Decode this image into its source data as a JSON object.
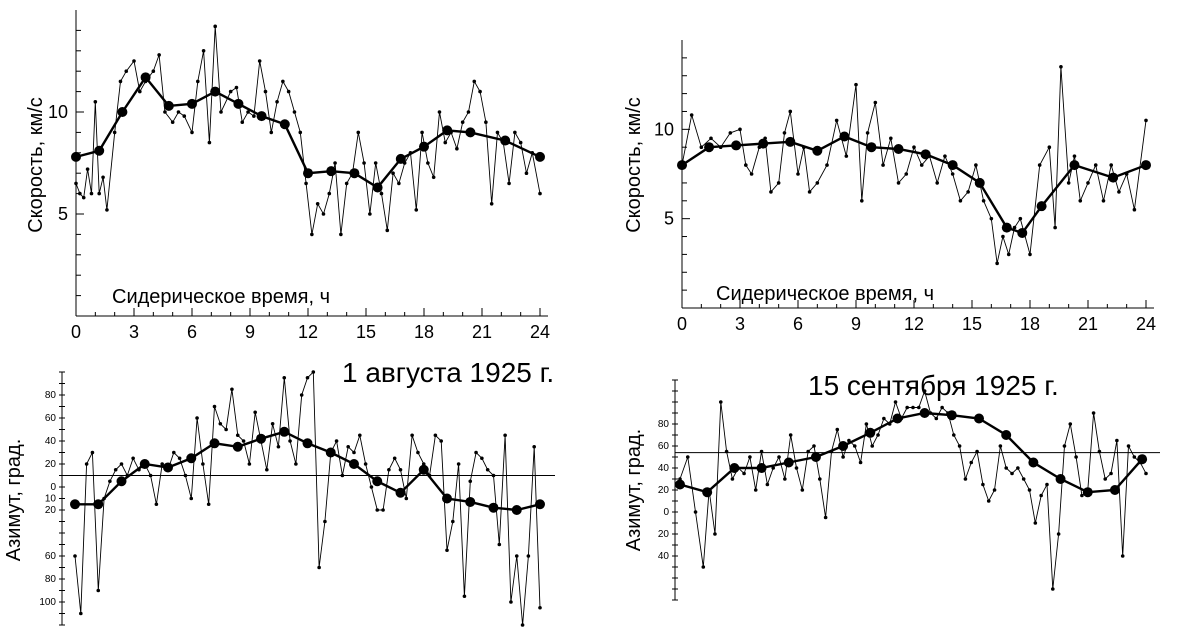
{
  "chart_data": [
    {
      "id": "speed-aug",
      "type": "line",
      "ylabel": "Скорость, км/с",
      "xlabel": "Сидерическое время, ч",
      "xlim": [
        0,
        24
      ],
      "ylim": [
        0,
        15
      ],
      "xticks": [
        "0",
        "3",
        "6",
        "9",
        "12",
        "15",
        "18",
        "21",
        "24"
      ],
      "yticks": [
        {
          "value": 5,
          "label": "5"
        },
        {
          "value": 10,
          "label": "10"
        }
      ],
      "series": [
        {
          "role": "raw",
          "x": [
            0,
            0.2,
            0.4,
            0.6,
            0.8,
            1.0,
            1.2,
            1.4,
            1.6,
            2.0,
            2.3,
            2.6,
            3.0,
            3.3,
            3.6,
            4.0,
            4.3,
            4.6,
            5.0,
            5.3,
            5.6,
            6.0,
            6.3,
            6.6,
            6.9,
            7.2,
            7.5,
            8.0,
            8.3,
            8.6,
            8.9,
            9.2,
            9.5,
            9.8,
            10.1,
            10.4,
            10.7,
            11.0,
            11.3,
            11.6,
            11.9,
            12.2,
            12.5,
            12.8,
            13.1,
            13.4,
            13.7,
            14.0,
            14.3,
            14.6,
            14.9,
            15.2,
            15.5,
            15.8,
            16.1,
            16.4,
            16.7,
            17.0,
            17.3,
            17.6,
            17.9,
            18.2,
            18.5,
            18.8,
            19.1,
            19.4,
            19.7,
            20.0,
            20.3,
            20.6,
            20.9,
            21.2,
            21.5,
            21.8,
            22.1,
            22.4,
            22.7,
            23.0,
            23.3,
            23.6,
            24.0
          ],
          "y": [
            6.5,
            6.0,
            5.8,
            7.2,
            6.0,
            10.5,
            6.0,
            6.8,
            5.2,
            9.0,
            11.5,
            12.0,
            12.5,
            11.0,
            11.5,
            12.0,
            12.8,
            10.0,
            9.5,
            10.0,
            9.8,
            9.0,
            11.5,
            13.0,
            8.5,
            14.2,
            10.0,
            11.0,
            11.2,
            9.5,
            10.0,
            9.8,
            12.5,
            11.0,
            9.0,
            10.5,
            11.5,
            11.0,
            10.0,
            9.0,
            6.5,
            4.0,
            5.5,
            5.0,
            6.0,
            7.5,
            4.0,
            6.5,
            7.0,
            9.0,
            7.5,
            5.0,
            7.5,
            6.0,
            4.2,
            7.0,
            6.5,
            7.5,
            8.0,
            5.2,
            9.0,
            7.5,
            6.8,
            10.0,
            8.5,
            9.0,
            8.2,
            9.5,
            10.0,
            11.5,
            11.0,
            9.5,
            5.5,
            9.0,
            8.5,
            6.5,
            9.0,
            8.5,
            7.0,
            8.0,
            6.0
          ]
        },
        {
          "role": "mean",
          "x": [
            0,
            1.2,
            2.4,
            3.6,
            4.8,
            6.0,
            7.2,
            8.4,
            9.6,
            10.8,
            12.0,
            13.2,
            14.4,
            15.6,
            16.8,
            18.0,
            19.2,
            20.4,
            22.2,
            24.0
          ],
          "y": [
            7.8,
            8.1,
            10.0,
            11.7,
            10.3,
            10.4,
            11.0,
            10.4,
            9.8,
            9.4,
            7.0,
            7.1,
            7.0,
            6.3,
            7.7,
            8.3,
            9.1,
            9.0,
            8.6,
            7.8
          ]
        }
      ]
    },
    {
      "id": "speed-sep",
      "type": "line",
      "ylabel": "Скорость, км/с",
      "xlabel": "Сидерическое время, ч",
      "xlim": [
        0,
        24
      ],
      "ylim": [
        0,
        15
      ],
      "xticks": [
        "0",
        "3",
        "6",
        "9",
        "12",
        "15",
        "18",
        "21",
        "24"
      ],
      "yticks": [
        {
          "value": 5,
          "label": "5"
        },
        {
          "value": 10,
          "label": "10"
        }
      ],
      "series": [
        {
          "role": "raw",
          "x": [
            0,
            0.5,
            1.0,
            1.5,
            2.0,
            2.5,
            3.0,
            3.3,
            3.6,
            4.0,
            4.3,
            4.6,
            5.0,
            5.3,
            5.6,
            6.0,
            6.3,
            6.6,
            7.0,
            7.5,
            8.0,
            8.5,
            9.0,
            9.3,
            9.6,
            10.0,
            10.4,
            10.8,
            11.2,
            11.6,
            12.0,
            12.4,
            12.8,
            13.2,
            13.6,
            14.0,
            14.4,
            14.8,
            15.2,
            15.6,
            16.0,
            16.3,
            16.6,
            16.9,
            17.2,
            17.5,
            18.0,
            18.5,
            19.0,
            19.3,
            19.6,
            20.0,
            20.3,
            20.6,
            21.0,
            21.4,
            21.8,
            22.2,
            22.6,
            23.0,
            23.4,
            24.0
          ],
          "y": [
            8.0,
            10.8,
            9.0,
            9.5,
            9.0,
            9.8,
            10.0,
            8.0,
            7.5,
            9.0,
            9.5,
            6.5,
            7.0,
            9.8,
            11.0,
            7.5,
            9.0,
            6.5,
            7.0,
            8.0,
            10.5,
            8.5,
            12.5,
            6.0,
            9.8,
            11.5,
            8.0,
            9.5,
            7.0,
            7.5,
            9.0,
            8.0,
            8.5,
            7.0,
            8.5,
            7.5,
            6.0,
            6.5,
            8.0,
            6.0,
            5.0,
            2.5,
            4.0,
            3.0,
            4.5,
            5.0,
            3.0,
            8.0,
            9.0,
            4.5,
            13.5,
            7.0,
            8.5,
            6.0,
            7.0,
            8.0,
            6.0,
            8.0,
            6.5,
            7.5,
            5.5,
            10.5
          ]
        },
        {
          "role": "mean",
          "x": [
            0,
            1.4,
            2.8,
            4.2,
            5.6,
            7.0,
            8.4,
            9.8,
            11.2,
            12.6,
            14.0,
            15.4,
            16.8,
            17.6,
            18.6,
            20.3,
            22.3,
            24.0
          ],
          "y": [
            8.0,
            9.0,
            9.1,
            9.2,
            9.3,
            8.8,
            9.6,
            9.0,
            8.9,
            8.6,
            8.0,
            7.0,
            4.5,
            4.2,
            5.7,
            8.0,
            7.3,
            8.0
          ]
        }
      ]
    },
    {
      "id": "azimuth-aug",
      "type": "line",
      "ylabel": "Азимут, град.",
      "xlim": [
        0,
        24
      ],
      "ylim": [
        -120,
        100
      ],
      "yticks": [
        {
          "value": 80,
          "label": "80"
        },
        {
          "value": 60,
          "label": "60"
        },
        {
          "value": 40,
          "label": "40"
        },
        {
          "value": 20,
          "label": "20"
        },
        {
          "value": 0,
          "label": "0"
        },
        {
          "value": -10,
          "label": "10"
        },
        {
          "value": -20,
          "label": "20"
        },
        {
          "value": -60,
          "label": "60"
        },
        {
          "value": -80,
          "label": "80"
        },
        {
          "value": -100,
          "label": "100"
        }
      ],
      "reference_line": 10,
      "series": [
        {
          "role": "raw",
          "x": [
            0,
            0.3,
            0.6,
            0.9,
            1.2,
            1.5,
            1.8,
            2.1,
            2.4,
            2.7,
            3.0,
            3.3,
            3.6,
            3.9,
            4.2,
            4.5,
            4.8,
            5.1,
            5.4,
            5.7,
            6.0,
            6.3,
            6.6,
            6.9,
            7.2,
            7.5,
            7.8,
            8.1,
            8.4,
            8.7,
            9.0,
            9.3,
            9.6,
            9.9,
            10.2,
            10.5,
            10.8,
            11.1,
            11.4,
            11.7,
            12.0,
            12.3,
            12.6,
            12.9,
            13.2,
            13.5,
            13.8,
            14.1,
            14.4,
            14.7,
            15.0,
            15.3,
            15.6,
            15.9,
            16.2,
            16.5,
            16.8,
            17.1,
            17.4,
            17.7,
            18.0,
            18.3,
            18.6,
            18.9,
            19.2,
            19.5,
            19.8,
            20.1,
            20.4,
            20.7,
            21.0,
            21.3,
            21.6,
            21.9,
            22.2,
            22.5,
            22.8,
            23.1,
            23.4,
            23.7,
            24.0
          ],
          "y": [
            -60,
            -110,
            20,
            30,
            -90,
            -10,
            5,
            15,
            20,
            10,
            25,
            15,
            20,
            10,
            -15,
            20,
            15,
            30,
            25,
            10,
            -10,
            60,
            20,
            -15,
            70,
            55,
            50,
            85,
            45,
            40,
            20,
            65,
            40,
            15,
            55,
            35,
            95,
            40,
            20,
            80,
            95,
            100,
            -70,
            -30,
            30,
            40,
            10,
            35,
            30,
            45,
            20,
            0,
            -20,
            -20,
            15,
            25,
            15,
            -10,
            45,
            30,
            20,
            10,
            45,
            40,
            -55,
            -30,
            20,
            -95,
            5,
            30,
            25,
            15,
            10,
            -50,
            45,
            -100,
            -60,
            -120,
            -60,
            35,
            -105
          ]
        },
        {
          "role": "mean",
          "x": [
            0,
            1.2,
            2.4,
            3.6,
            4.8,
            6.0,
            7.2,
            8.4,
            9.6,
            10.8,
            12.0,
            13.2,
            14.4,
            15.6,
            16.8,
            18.0,
            19.2,
            20.4,
            21.6,
            22.8,
            24.0
          ],
          "y": [
            -15,
            -15,
            5,
            20,
            17,
            25,
            38,
            35,
            42,
            48,
            38,
            30,
            20,
            5,
            -5,
            15,
            -10,
            -13,
            -18,
            -20,
            -15
          ]
        }
      ]
    },
    {
      "id": "azimuth-sep",
      "type": "line",
      "ylabel": "Азимут, град.",
      "xlim": [
        0,
        24
      ],
      "ylim": [
        -80,
        120
      ],
      "yticks": [
        {
          "value": 80,
          "label": "80"
        },
        {
          "value": 60,
          "label": "60"
        },
        {
          "value": 40,
          "label": "40"
        },
        {
          "value": 20,
          "label": "20"
        },
        {
          "value": 0,
          "label": "0"
        },
        {
          "value": -20,
          "label": "20"
        },
        {
          "value": -40,
          "label": "40"
        }
      ],
      "reference_line": 54,
      "series": [
        {
          "role": "raw",
          "x": [
            0,
            0.4,
            0.8,
            1.2,
            1.5,
            1.8,
            2.1,
            2.4,
            2.7,
            3.0,
            3.3,
            3.6,
            3.9,
            4.2,
            4.5,
            4.8,
            5.1,
            5.4,
            5.7,
            6.0,
            6.3,
            6.6,
            6.9,
            7.2,
            7.5,
            7.8,
            8.1,
            8.4,
            8.7,
            9.0,
            9.3,
            9.6,
            9.9,
            10.2,
            10.5,
            10.8,
            11.1,
            11.4,
            11.7,
            12.0,
            12.3,
            12.6,
            12.9,
            13.2,
            13.5,
            13.8,
            14.1,
            14.4,
            14.7,
            15.0,
            15.3,
            15.6,
            15.9,
            16.2,
            16.5,
            16.8,
            17.1,
            17.4,
            17.7,
            18.0,
            18.3,
            18.6,
            18.9,
            19.2,
            19.5,
            19.8,
            20.1,
            20.4,
            20.7,
            21.0,
            21.3,
            21.6,
            21.9,
            22.2,
            22.5,
            22.8,
            23.1,
            23.4,
            23.7,
            24.0
          ],
          "y": [
            30,
            50,
            0,
            -50,
            20,
            -20,
            100,
            55,
            30,
            40,
            35,
            50,
            20,
            55,
            25,
            40,
            50,
            30,
            70,
            40,
            20,
            55,
            60,
            30,
            -5,
            55,
            75,
            50,
            65,
            60,
            45,
            80,
            60,
            70,
            85,
            80,
            100,
            85,
            95,
            95,
            95,
            110,
            90,
            85,
            95,
            90,
            70,
            60,
            30,
            45,
            55,
            25,
            10,
            20,
            60,
            40,
            35,
            40,
            30,
            20,
            -10,
            15,
            25,
            -70,
            -20,
            60,
            80,
            50,
            15,
            20,
            90,
            55,
            30,
            35,
            65,
            -40,
            60,
            50,
            45,
            35
          ]
        },
        {
          "role": "mean",
          "x": [
            0,
            1.4,
            2.8,
            4.2,
            5.6,
            7.0,
            8.4,
            9.8,
            11.2,
            12.6,
            14.0,
            15.4,
            16.8,
            18.2,
            19.6,
            21.0,
            22.4,
            23.8
          ],
          "y": [
            25,
            18,
            40,
            40,
            45,
            50,
            60,
            72,
            85,
            90,
            88,
            85,
            70,
            45,
            30,
            18,
            20,
            48
          ]
        }
      ]
    }
  ],
  "labels": {
    "date_aug": "1 августа 1925 г.",
    "date_sep": "15 сентября 1925 г."
  }
}
